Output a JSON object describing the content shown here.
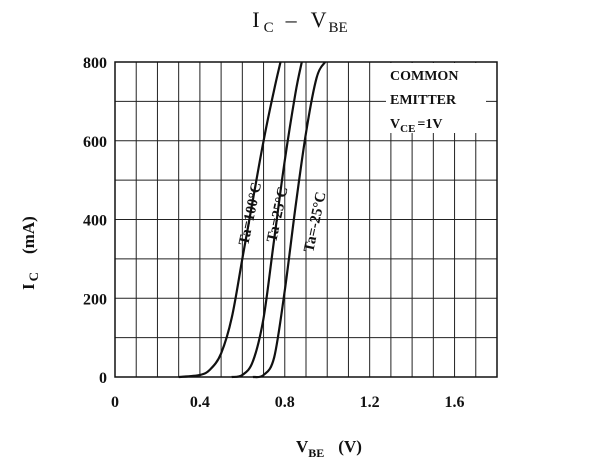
{
  "chart_data": {
    "type": "line",
    "title": "I C – V BE",
    "title_parts": {
      "main1": "I",
      "sub1": "C",
      "dash": "–",
      "main2": "V",
      "sub2": "BE"
    },
    "xlabel": {
      "main": "V",
      "sub": "BE",
      "unit": "(V)"
    },
    "ylabel": {
      "main": "I",
      "sub": "C",
      "unit": "(mA)"
    },
    "xlim": [
      0,
      1.8
    ],
    "ylim": [
      0,
      800
    ],
    "x_ticks": [
      0,
      0.4,
      0.8,
      1.2,
      1.6
    ],
    "x_tick_labels": [
      "0",
      "0.4",
      "0.8",
      "1.2",
      "1.6"
    ],
    "y_ticks": [
      0,
      200,
      400,
      600,
      800
    ],
    "y_tick_labels": [
      "0",
      "200",
      "400",
      "600",
      "800"
    ],
    "grid": true,
    "x_minor_step": 0.1,
    "y_minor_step": 100,
    "annotation": {
      "lines": [
        "COMMON",
        "EMITTER"
      ],
      "vce_main": "V",
      "vce_sub": "CE",
      "vce_rest": "=1V"
    },
    "series": [
      {
        "name": "Ta=100°C",
        "x": [
          0.3,
          0.4,
          0.45,
          0.5,
          0.55,
          0.6,
          0.65,
          0.7,
          0.75,
          0.78
        ],
        "y": [
          0,
          5,
          20,
          60,
          150,
          300,
          450,
          600,
          730,
          800
        ]
      },
      {
        "name": "Ta=25°C",
        "x": [
          0.55,
          0.6,
          0.65,
          0.7,
          0.75,
          0.8,
          0.85,
          0.88
        ],
        "y": [
          0,
          5,
          40,
          150,
          350,
          550,
          720,
          800
        ]
      },
      {
        "name": "Ta=-25°C",
        "x": [
          0.65,
          0.7,
          0.75,
          0.8,
          0.85,
          0.9,
          0.95,
          0.99
        ],
        "y": [
          0,
          5,
          50,
          220,
          430,
          620,
          760,
          800
        ]
      }
    ]
  }
}
